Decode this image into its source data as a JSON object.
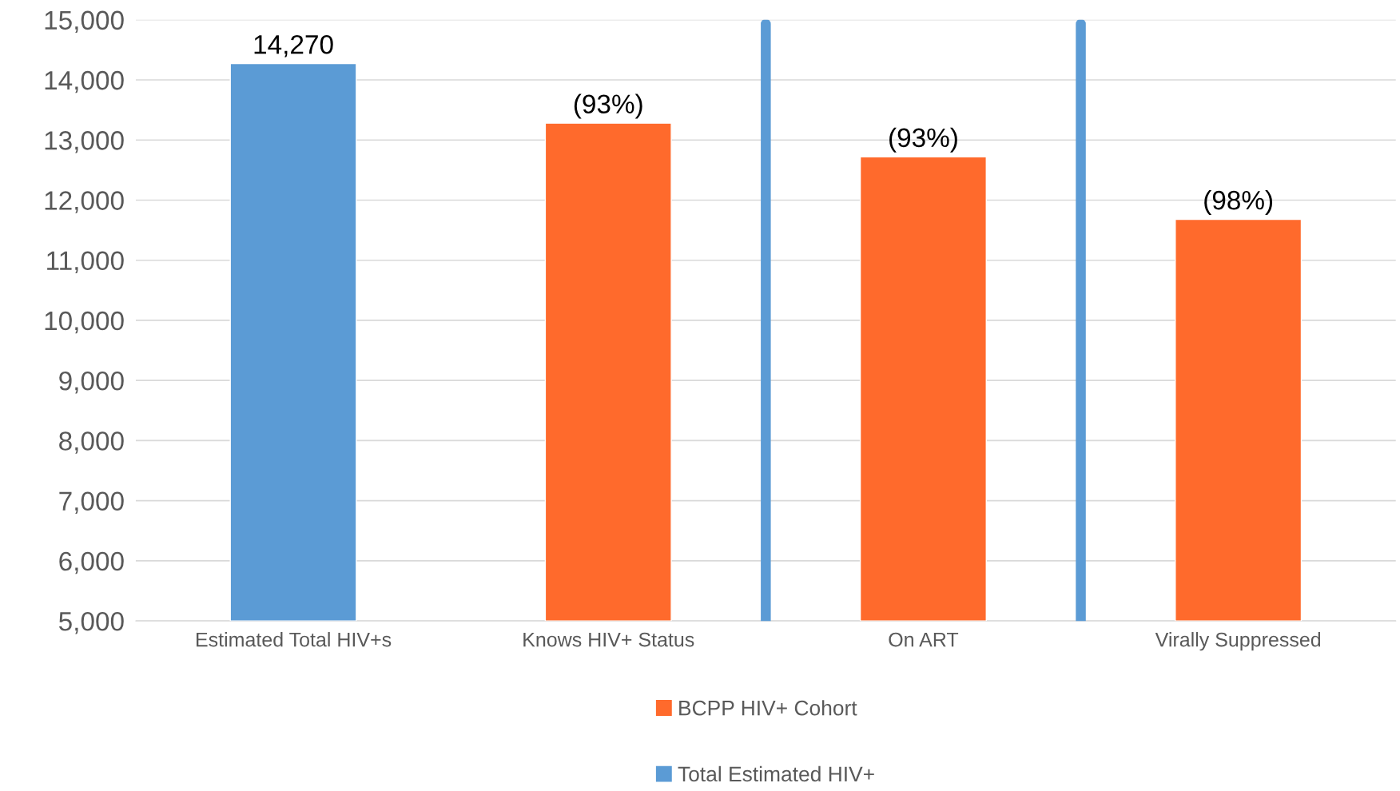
{
  "chart_data": {
    "type": "bar",
    "categories": [
      "Estimated Total HIV+s",
      "Knows HIV+ Status",
      "On ART",
      "Virally Suppressed"
    ],
    "series": [
      {
        "name": "BCPP HIV+ Cohort",
        "color": "#ff6a2c",
        "values": [
          null,
          13280,
          12720,
          11680
        ]
      },
      {
        "name": "Total Estimated HIV+",
        "color": "#5b9bd5",
        "values": [
          14270,
          null,
          null,
          null
        ],
        "value_labels": [
          "14,270",
          null,
          null,
          null
        ]
      }
    ],
    "annotations": [
      {
        "text": "(93%)",
        "x": "Knows HIV+ Status",
        "y": 13280
      },
      {
        "text": "(93%)",
        "x": "On ART",
        "y": 12720
      },
      {
        "text": "(98%)",
        "x": "Virally Suppressed",
        "y": 11680
      }
    ],
    "ylim": [
      5000,
      15000
    ],
    "yticks": [
      {
        "value": 5000,
        "label": "5,000"
      },
      {
        "value": 6000,
        "label": "6,000"
      },
      {
        "value": 7000,
        "label": "7,000"
      },
      {
        "value": 8000,
        "label": "8,000"
      },
      {
        "value": 9000,
        "label": "9,000"
      },
      {
        "value": 10000,
        "label": "10,000"
      },
      {
        "value": 11000,
        "label": "11,000"
      },
      {
        "value": 12000,
        "label": "12,000"
      },
      {
        "value": 13000,
        "label": "13,000"
      },
      {
        "value": 14000,
        "label": "14,000"
      },
      {
        "value": 15000,
        "label": "15,000"
      }
    ],
    "grid": "y",
    "legend": "bottom"
  }
}
